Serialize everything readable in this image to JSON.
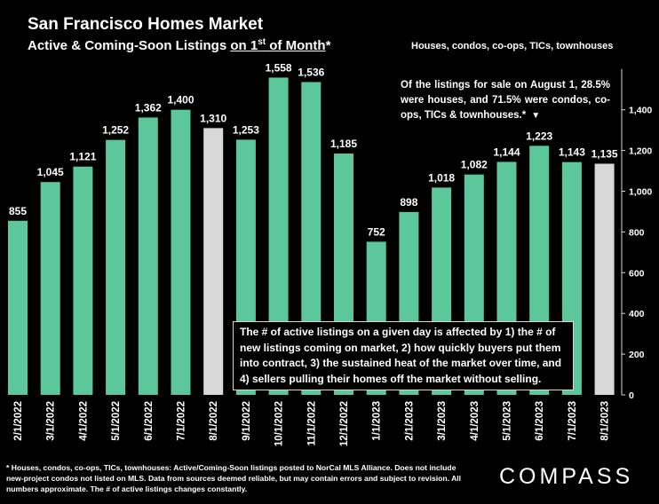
{
  "header": {
    "title": "San Francisco Homes Market",
    "subtitle_a": "Active & Coming-Soon Listings ",
    "subtitle_u1": "on 1",
    "subtitle_sup": "st",
    "subtitle_u2": " of Month",
    "subtitle_b": "*",
    "scope": "Houses, condos, co-ops, TICs, townhouses"
  },
  "notes": {
    "top": "Of the listings for sale on August 1, 28.5% were houses, and 71.5% were condos, co-ops, TICs & townhouses.*",
    "top_marker": "▼",
    "middle": "The # of active listings on a given day is affected by 1) the # of new listings coming on market, 2) how quickly buyers put them into contract, 3) the sustained heat of the market over time, and 4) sellers pulling their homes off the market without selling."
  },
  "footnote": "* Houses, condos, co-ops, TICs, townhouses: Active/Coming-Soon listings posted to NorCal MLS Alliance. Does not include new-project condos not listed on MLS. Data from sources deemed reliable, but may contain errors and subject to revision. All numbers approximate. The # of active listings changes constantly.",
  "logo": "COMPASS",
  "colors": {
    "bar": "#5cc79a",
    "bar_highlight": "#d9d9d9",
    "background": "#000000"
  },
  "chart_data": {
    "type": "bar",
    "title": "San Francisco Homes Market",
    "categories": [
      "2/1/2022",
      "3/1/2022",
      "4/1/2022",
      "5/1/2022",
      "6/1/2022",
      "7/1/2022",
      "8/1/2022",
      "9/1/2022",
      "10/1/2022",
      "11/1/2022",
      "12/1/2022",
      "1/1/2023",
      "2/1/2023",
      "3/1/2023",
      "4/1/2023",
      "5/1/2023",
      "6/1/2023",
      "7/1/2023",
      "8/1/2023"
    ],
    "values": [
      855,
      1045,
      1121,
      1252,
      1362,
      1400,
      1310,
      1253,
      1558,
      1536,
      1185,
      752,
      898,
      1018,
      1082,
      1144,
      1223,
      1143,
      1135
    ],
    "value_labels": [
      "855",
      "1,045",
      "1,121",
      "1,252",
      "1,362",
      "1,400",
      "1,310",
      "1,253",
      "1,558",
      "1,536",
      "1,185",
      "752",
      "898",
      "1,018",
      "1,082",
      "1,144",
      "1,223",
      "1,143",
      "1,135"
    ],
    "highlighted": [
      "8/1/2022",
      "8/1/2023"
    ],
    "y_axis_side": "right",
    "yticks": [
      0,
      200,
      400,
      600,
      800,
      1000,
      1200,
      1400
    ],
    "ytick_labels": [
      "0",
      "200",
      "400",
      "600",
      "800",
      "1,000",
      "1,200",
      "1,400"
    ],
    "ylim": [
      0,
      1600
    ],
    "grid": false
  }
}
